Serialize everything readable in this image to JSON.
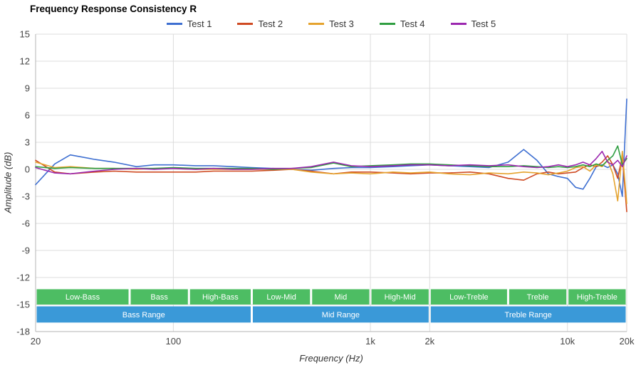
{
  "title": "Frequency Response Consistency R",
  "legend": [
    "Test 1",
    "Test 2",
    "Test 3",
    "Test 4",
    "Test 5"
  ],
  "chart_data": {
    "type": "line",
    "title": "Frequency Response Consistency R",
    "xlabel": "Frequency (Hz)",
    "ylabel": "Amplitude (dB)",
    "x_scale": "log",
    "xlim": [
      20,
      20000
    ],
    "ylim": [
      -18,
      15
    ],
    "grid": true,
    "legend_position": "top",
    "y_ticks": [
      15,
      12,
      9,
      6,
      3,
      0,
      -3,
      -6,
      -9,
      -12,
      -15,
      -18
    ],
    "x_ticks": [
      {
        "value": 20,
        "label": "20"
      },
      {
        "value": 100,
        "label": "100"
      },
      {
        "value": 1000,
        "label": "1k"
      },
      {
        "value": 2000,
        "label": "2k"
      },
      {
        "value": 10000,
        "label": "10k"
      },
      {
        "value": 20000,
        "label": "20k"
      }
    ],
    "x": [
      20,
      25,
      30,
      40,
      50,
      65,
      80,
      100,
      130,
      160,
      200,
      250,
      320,
      400,
      500,
      650,
      800,
      1000,
      1300,
      1600,
      2000,
      2500,
      3200,
      4000,
      5000,
      6000,
      7000,
      8000,
      9000,
      10000,
      11000,
      12000,
      13000,
      14000,
      15000,
      16000,
      17000,
      18000,
      19000,
      20000
    ],
    "series": [
      {
        "name": "Test 1",
        "color": "#3e6fd1",
        "values": [
          -1.7,
          0.6,
          1.6,
          1.1,
          0.8,
          0.3,
          0.5,
          0.5,
          0.4,
          0.4,
          0.3,
          0.2,
          0.1,
          0.0,
          -0.1,
          0.1,
          0.2,
          0.2,
          0.3,
          0.4,
          0.5,
          0.4,
          0.3,
          0.2,
          0.8,
          2.2,
          1.0,
          -0.5,
          -0.8,
          -1.0,
          -2.0,
          -2.2,
          -1.0,
          0.3,
          0.5,
          0.2,
          0.5,
          -0.5,
          -3.0,
          7.8
        ]
      },
      {
        "name": "Test 2",
        "color": "#cf4a22",
        "values": [
          1.0,
          -0.3,
          -0.5,
          -0.3,
          -0.2,
          -0.3,
          -0.3,
          -0.3,
          -0.3,
          -0.2,
          -0.2,
          -0.2,
          -0.1,
          0.0,
          -0.2,
          -0.5,
          -0.3,
          -0.3,
          -0.4,
          -0.5,
          -0.4,
          -0.4,
          -0.3,
          -0.5,
          -1.0,
          -1.2,
          -0.5,
          -0.3,
          -0.5,
          -0.4,
          -0.3,
          0.2,
          0.5,
          0.3,
          0.8,
          1.5,
          0.5,
          -1.0,
          1.5,
          -4.7
        ]
      },
      {
        "name": "Test 3",
        "color": "#e5a32e",
        "values": [
          0.8,
          0.2,
          0.3,
          0.1,
          0.1,
          0.0,
          0.1,
          0.1,
          0.0,
          0.0,
          0.0,
          0.0,
          0.0,
          0.0,
          -0.3,
          -0.5,
          -0.4,
          -0.5,
          -0.3,
          -0.4,
          -0.3,
          -0.5,
          -0.6,
          -0.4,
          -0.5,
          -0.3,
          -0.4,
          -0.6,
          -0.4,
          -0.2,
          0.2,
          0.3,
          -0.2,
          0.5,
          0.3,
          1.0,
          -0.5,
          -3.5,
          2.0,
          -3.8
        ]
      },
      {
        "name": "Test 4",
        "color": "#2f9e41",
        "values": [
          0.3,
          0.1,
          0.2,
          0.1,
          0.1,
          0.1,
          0.1,
          0.2,
          0.1,
          0.1,
          0.1,
          0.1,
          0.0,
          0.1,
          0.2,
          0.7,
          0.3,
          0.4,
          0.5,
          0.6,
          0.6,
          0.5,
          0.4,
          0.3,
          0.3,
          0.4,
          0.3,
          0.2,
          0.3,
          0.2,
          0.3,
          0.5,
          0.3,
          0.6,
          0.4,
          1.0,
          1.5,
          2.6,
          0.5,
          1.2
        ]
      },
      {
        "name": "Test 5",
        "color": "#9b27af",
        "values": [
          0.2,
          -0.4,
          -0.5,
          -0.2,
          0.0,
          0.1,
          0.0,
          0.1,
          0.0,
          0.1,
          0.0,
          0.0,
          0.1,
          0.1,
          0.3,
          0.8,
          0.4,
          0.3,
          0.4,
          0.5,
          0.5,
          0.4,
          0.5,
          0.4,
          0.5,
          0.3,
          0.2,
          0.3,
          0.5,
          0.3,
          0.5,
          0.8,
          0.5,
          1.2,
          2.0,
          0.8,
          0.5,
          1.0,
          0.3,
          1.5
        ]
      }
    ]
  },
  "bands": {
    "sub_band_color": "#4dbd63",
    "range_color": "#3a99d8",
    "sub_bands": [
      {
        "label": "Low-Bass",
        "from": 20,
        "to": 60
      },
      {
        "label": "Bass",
        "from": 60,
        "to": 120
      },
      {
        "label": "High-Bass",
        "from": 120,
        "to": 250
      },
      {
        "label": "Low-Mid",
        "from": 250,
        "to": 500
      },
      {
        "label": "Mid",
        "from": 500,
        "to": 1000
      },
      {
        "label": "High-Mid",
        "from": 1000,
        "to": 2000
      },
      {
        "label": "Low-Treble",
        "from": 2000,
        "to": 5000
      },
      {
        "label": "Treble",
        "from": 5000,
        "to": 10000
      },
      {
        "label": "High-Treble",
        "from": 10000,
        "to": 20000
      }
    ],
    "ranges": [
      {
        "label": "Bass Range",
        "from": 20,
        "to": 250
      },
      {
        "label": "Mid Range",
        "from": 250,
        "to": 2000
      },
      {
        "label": "Treble Range",
        "from": 2000,
        "to": 20000
      }
    ]
  },
  "colors": {
    "grid": "#dcdcdc",
    "axis": "#b5b5b5",
    "tick_label": "#444444",
    "band_text": "#ffffff"
  }
}
